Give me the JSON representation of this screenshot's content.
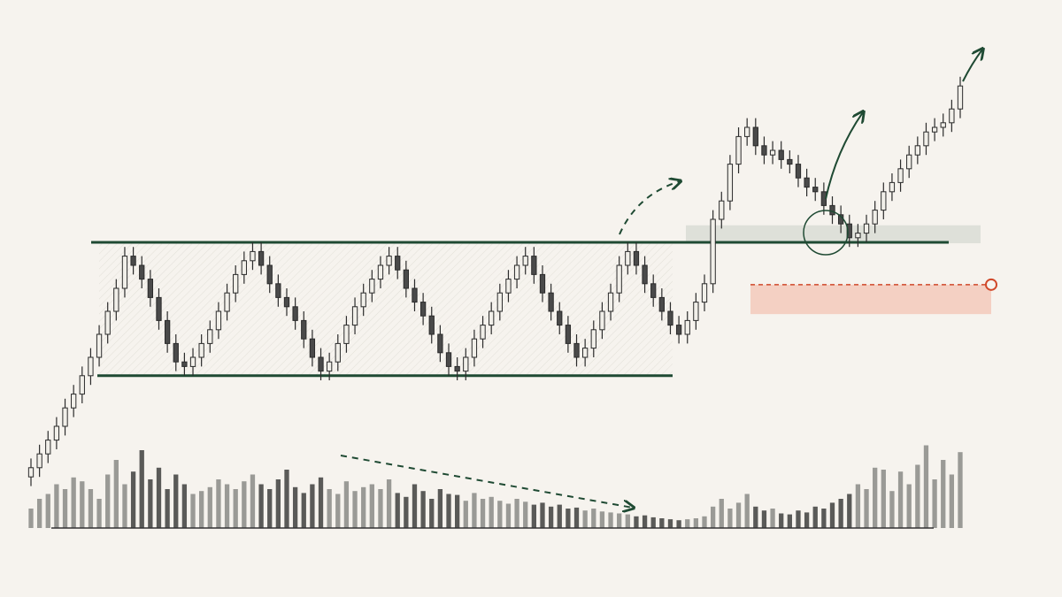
{
  "chart_data": {
    "type": "candlestick",
    "ylim": [
      0,
      100
    ],
    "vlim": [
      0,
      100
    ],
    "up_color": "#f1efe9",
    "down_color": "#4a4a4a",
    "wick_color": "#2b2b2b",
    "volume_up_color": "#9a9a96",
    "volume_down_color": "#5a5a58",
    "hlines": [
      55,
      26
    ],
    "hline_color": "#1f4a33",
    "zones": [
      {
        "from": 54.8,
        "to": 58.7,
        "color": "#d9dcd5"
      },
      {
        "from": 39.4,
        "to": 45.8,
        "color": "#f3c9bb"
      }
    ],
    "ohlc": [
      [
        4,
        8,
        2,
        6
      ],
      [
        6,
        11,
        4,
        9
      ],
      [
        9,
        14,
        7,
        12
      ],
      [
        12,
        17,
        10,
        15
      ],
      [
        15,
        21,
        13,
        19
      ],
      [
        19,
        24,
        17,
        22
      ],
      [
        22,
        28,
        20,
        26
      ],
      [
        26,
        32,
        24,
        30
      ],
      [
        30,
        37,
        28,
        35
      ],
      [
        35,
        42,
        33,
        40
      ],
      [
        40,
        47,
        38,
        45
      ],
      [
        45,
        54,
        43,
        52
      ],
      [
        52,
        54,
        48,
        50
      ],
      [
        50,
        52,
        45,
        47
      ],
      [
        47,
        49,
        41,
        43
      ],
      [
        43,
        45,
        36,
        38
      ],
      [
        38,
        40,
        31,
        33
      ],
      [
        33,
        35,
        27,
        29
      ],
      [
        29,
        31,
        26,
        28
      ],
      [
        28,
        32,
        26,
        30
      ],
      [
        30,
        35,
        28,
        33
      ],
      [
        33,
        38,
        31,
        36
      ],
      [
        36,
        42,
        34,
        40
      ],
      [
        40,
        46,
        38,
        44
      ],
      [
        44,
        50,
        42,
        48
      ],
      [
        48,
        53,
        46,
        51
      ],
      [
        51,
        55,
        49,
        53
      ],
      [
        53,
        55,
        48,
        50
      ],
      [
        50,
        52,
        44,
        46
      ],
      [
        46,
        48,
        41,
        43
      ],
      [
        43,
        45,
        39,
        41
      ],
      [
        41,
        43,
        36,
        38
      ],
      [
        38,
        40,
        32,
        34
      ],
      [
        34,
        36,
        28,
        30
      ],
      [
        30,
        32,
        25,
        27
      ],
      [
        27,
        31,
        25,
        29
      ],
      [
        29,
        35,
        27,
        33
      ],
      [
        33,
        39,
        31,
        37
      ],
      [
        37,
        43,
        35,
        41
      ],
      [
        41,
        46,
        39,
        44
      ],
      [
        44,
        49,
        42,
        47
      ],
      [
        47,
        52,
        45,
        50
      ],
      [
        50,
        54,
        48,
        52
      ],
      [
        52,
        54,
        47,
        49
      ],
      [
        49,
        51,
        43,
        45
      ],
      [
        45,
        47,
        40,
        42
      ],
      [
        42,
        44,
        37,
        39
      ],
      [
        39,
        41,
        33,
        35
      ],
      [
        35,
        37,
        29,
        31
      ],
      [
        31,
        33,
        26,
        28
      ],
      [
        28,
        30,
        25,
        27
      ],
      [
        27,
        32,
        25,
        30
      ],
      [
        30,
        36,
        28,
        34
      ],
      [
        34,
        39,
        32,
        37
      ],
      [
        37,
        42,
        35,
        40
      ],
      [
        40,
        46,
        38,
        44
      ],
      [
        44,
        49,
        42,
        47
      ],
      [
        47,
        52,
        45,
        50
      ],
      [
        50,
        54,
        48,
        52
      ],
      [
        52,
        54,
        46,
        48
      ],
      [
        48,
        50,
        42,
        44
      ],
      [
        44,
        46,
        38,
        40
      ],
      [
        40,
        42,
        35,
        37
      ],
      [
        37,
        39,
        31,
        33
      ],
      [
        33,
        35,
        28,
        30
      ],
      [
        30,
        34,
        28,
        32
      ],
      [
        32,
        38,
        30,
        36
      ],
      [
        36,
        42,
        34,
        40
      ],
      [
        40,
        46,
        38,
        44
      ],
      [
        44,
        52,
        42,
        50
      ],
      [
        50,
        55,
        48,
        53
      ],
      [
        53,
        55,
        48,
        50
      ],
      [
        50,
        52,
        44,
        46
      ],
      [
        46,
        48,
        41,
        43
      ],
      [
        43,
        45,
        38,
        40
      ],
      [
        40,
        42,
        35,
        37
      ],
      [
        37,
        39,
        33,
        35
      ],
      [
        35,
        40,
        33,
        38
      ],
      [
        38,
        44,
        36,
        42
      ],
      [
        42,
        48,
        40,
        46
      ],
      [
        46,
        62,
        44,
        60
      ],
      [
        60,
        66,
        58,
        64
      ],
      [
        64,
        74,
        62,
        72
      ],
      [
        72,
        80,
        70,
        78
      ],
      [
        78,
        82,
        76,
        80
      ],
      [
        80,
        82,
        74,
        76
      ],
      [
        76,
        78,
        72,
        74
      ],
      [
        74,
        77,
        72,
        75
      ],
      [
        75,
        77,
        71,
        73
      ],
      [
        73,
        75,
        70,
        72
      ],
      [
        72,
        74,
        67,
        69
      ],
      [
        69,
        71,
        65,
        67
      ],
      [
        67,
        69,
        64,
        66
      ],
      [
        66,
        68,
        61,
        63
      ],
      [
        63,
        65,
        59,
        61
      ],
      [
        61,
        63,
        57,
        59
      ],
      [
        59,
        61,
        54,
        56
      ],
      [
        56,
        59,
        54,
        57
      ],
      [
        57,
        61,
        55,
        59
      ],
      [
        59,
        64,
        57,
        62
      ],
      [
        62,
        68,
        60,
        66
      ],
      [
        66,
        70,
        64,
        68
      ],
      [
        68,
        73,
        66,
        71
      ],
      [
        71,
        76,
        69,
        74
      ],
      [
        74,
        78,
        72,
        76
      ],
      [
        76,
        81,
        74,
        79
      ],
      [
        79,
        82,
        77,
        80
      ],
      [
        80,
        83,
        78,
        81
      ],
      [
        81,
        86,
        79,
        84
      ],
      [
        84,
        91,
        82,
        89
      ]
    ],
    "volume": [
      20,
      30,
      35,
      45,
      40,
      52,
      48,
      40,
      30,
      55,
      70,
      45,
      58,
      80,
      50,
      62,
      40,
      55,
      45,
      35,
      38,
      42,
      50,
      45,
      40,
      48,
      55,
      45,
      40,
      50,
      60,
      42,
      36,
      45,
      52,
      40,
      35,
      48,
      38,
      42,
      45,
      40,
      50,
      36,
      32,
      45,
      38,
      30,
      40,
      35,
      34,
      28,
      36,
      30,
      32,
      28,
      25,
      30,
      27,
      24,
      26,
      22,
      24,
      20,
      21,
      18,
      20,
      17,
      16,
      15,
      14,
      12,
      13,
      11,
      10,
      9,
      8,
      9,
      10,
      12,
      22,
      30,
      20,
      26,
      35,
      22,
      18,
      20,
      15,
      14,
      18,
      16,
      22,
      20,
      26,
      30,
      35,
      45,
      40,
      62,
      60,
      38,
      58,
      45,
      65,
      85,
      50,
      70,
      55,
      78
    ]
  }
}
